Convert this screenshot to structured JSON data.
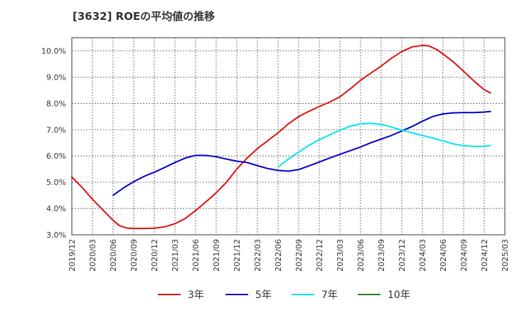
{
  "chart_data": {
    "type": "line",
    "title": "[3632]  ROEの平均値の推移",
    "xlabel": "",
    "ylabel": "",
    "ylim": [
      3.0,
      10.5
    ],
    "y_ticks": [
      3.0,
      4.0,
      5.0,
      6.0,
      7.0,
      8.0,
      9.0,
      10.0
    ],
    "y_tick_labels": [
      "3.0%",
      "4.0%",
      "5.0%",
      "6.0%",
      "7.0%",
      "8.0%",
      "9.0%",
      "10.0%"
    ],
    "x_ticks": [
      "2019/12",
      "2020/03",
      "2020/06",
      "2020/09",
      "2020/12",
      "2021/03",
      "2021/06",
      "2021/09",
      "2021/12",
      "2022/03",
      "2022/06",
      "2022/09",
      "2022/12",
      "2023/03",
      "2023/06",
      "2023/09",
      "2023/12",
      "2024/03",
      "2024/06",
      "2024/09",
      "2024/12",
      "2025/03"
    ],
    "grid": true,
    "legend_position": "bottom",
    "series": [
      {
        "name": "3年",
        "color": "#dd1111",
        "points": [
          [
            0,
            5.2
          ],
          [
            0.5,
            4.8
          ],
          [
            1,
            4.35
          ],
          [
            1.5,
            3.95
          ],
          [
            2,
            3.55
          ],
          [
            2.3,
            3.35
          ],
          [
            2.7,
            3.25
          ],
          [
            3,
            3.24
          ],
          [
            3.5,
            3.24
          ],
          [
            4,
            3.25
          ],
          [
            4.5,
            3.3
          ],
          [
            5,
            3.42
          ],
          [
            5.5,
            3.62
          ],
          [
            6,
            3.92
          ],
          [
            6.5,
            4.25
          ],
          [
            7,
            4.6
          ],
          [
            7.5,
            5.0
          ],
          [
            8,
            5.5
          ],
          [
            8.5,
            5.92
          ],
          [
            9,
            6.28
          ],
          [
            9.5,
            6.58
          ],
          [
            10,
            6.88
          ],
          [
            10.5,
            7.22
          ],
          [
            11,
            7.5
          ],
          [
            11.5,
            7.7
          ],
          [
            12,
            7.88
          ],
          [
            12.5,
            8.05
          ],
          [
            13,
            8.25
          ],
          [
            13.5,
            8.55
          ],
          [
            14,
            8.88
          ],
          [
            14.5,
            9.15
          ],
          [
            15,
            9.42
          ],
          [
            15.5,
            9.72
          ],
          [
            16,
            9.97
          ],
          [
            16.5,
            10.15
          ],
          [
            17,
            10.21
          ],
          [
            17.3,
            10.19
          ],
          [
            17.7,
            10.05
          ],
          [
            18,
            9.88
          ],
          [
            18.5,
            9.58
          ],
          [
            19,
            9.22
          ],
          [
            19.5,
            8.85
          ],
          [
            20,
            8.52
          ],
          [
            20.3,
            8.4
          ]
        ]
      },
      {
        "name": "5年",
        "color": "#0000cc",
        "points": [
          [
            2,
            4.5
          ],
          [
            2.5,
            4.78
          ],
          [
            3,
            5.02
          ],
          [
            3.5,
            5.22
          ],
          [
            4,
            5.38
          ],
          [
            4.5,
            5.56
          ],
          [
            5,
            5.75
          ],
          [
            5.5,
            5.92
          ],
          [
            6,
            6.02
          ],
          [
            6.5,
            6.02
          ],
          [
            7,
            5.97
          ],
          [
            7.5,
            5.88
          ],
          [
            8,
            5.8
          ],
          [
            8.5,
            5.75
          ],
          [
            9,
            5.63
          ],
          [
            9.5,
            5.52
          ],
          [
            10,
            5.45
          ],
          [
            10.5,
            5.42
          ],
          [
            11,
            5.48
          ],
          [
            11.5,
            5.62
          ],
          [
            12,
            5.77
          ],
          [
            12.5,
            5.92
          ],
          [
            13,
            6.06
          ],
          [
            13.5,
            6.2
          ],
          [
            14,
            6.34
          ],
          [
            14.5,
            6.5
          ],
          [
            15,
            6.64
          ],
          [
            15.5,
            6.78
          ],
          [
            16,
            6.95
          ],
          [
            16.5,
            7.12
          ],
          [
            17,
            7.32
          ],
          [
            17.5,
            7.5
          ],
          [
            18,
            7.6
          ],
          [
            18.5,
            7.64
          ],
          [
            19,
            7.65
          ],
          [
            19.5,
            7.65
          ],
          [
            20,
            7.67
          ],
          [
            20.3,
            7.69
          ]
        ]
      },
      {
        "name": "7年",
        "color": "#00e5ee",
        "points": [
          [
            10,
            5.58
          ],
          [
            10.5,
            5.88
          ],
          [
            11,
            6.15
          ],
          [
            11.5,
            6.4
          ],
          [
            12,
            6.62
          ],
          [
            12.5,
            6.8
          ],
          [
            13,
            6.98
          ],
          [
            13.5,
            7.13
          ],
          [
            14,
            7.22
          ],
          [
            14.5,
            7.24
          ],
          [
            15,
            7.2
          ],
          [
            15.5,
            7.1
          ],
          [
            16,
            6.98
          ],
          [
            16.5,
            6.88
          ],
          [
            17,
            6.78
          ],
          [
            17.5,
            6.68
          ],
          [
            18,
            6.57
          ],
          [
            18.5,
            6.46
          ],
          [
            19,
            6.39
          ],
          [
            19.5,
            6.36
          ],
          [
            20,
            6.37
          ],
          [
            20.3,
            6.4
          ]
        ]
      },
      {
        "name": "10年",
        "color": "#228822",
        "points": []
      }
    ]
  }
}
